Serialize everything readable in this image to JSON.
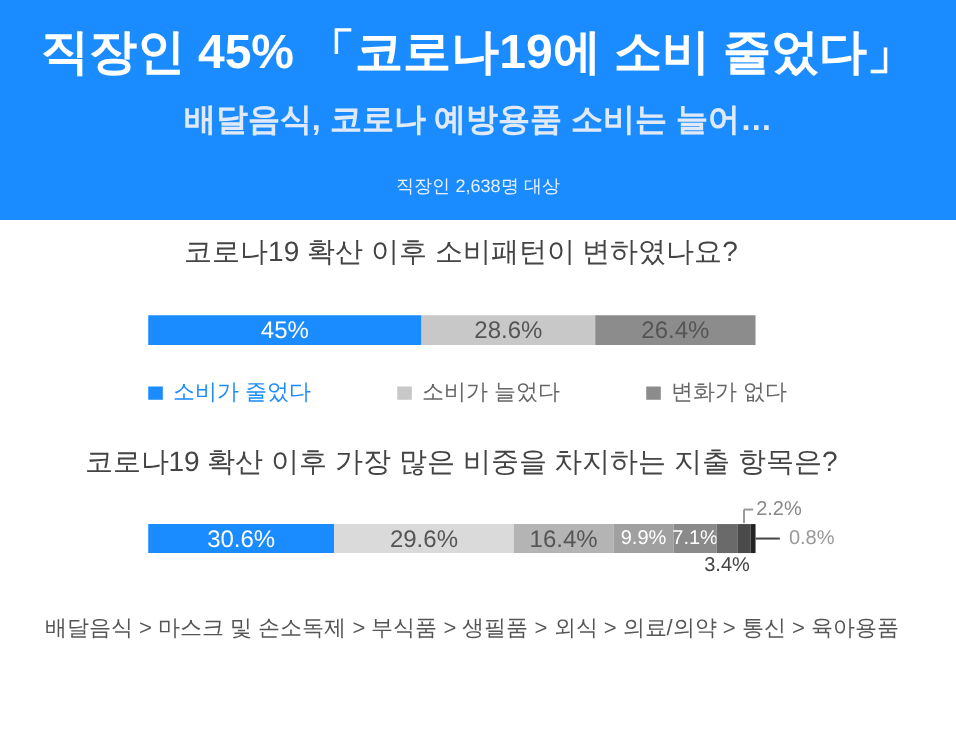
{
  "chart_data": [
    {
      "type": "other",
      "title": "직장인 45% 「코로나19에 소비 줄었다」",
      "subtitle": "배달음식, 코로나 예방용품 소비는 늘어…",
      "annotations": [
        "직장인 2,638명 대상"
      ],
      "color": "#1a8cff"
    },
    {
      "type": "bar",
      "orientation": "horizontal",
      "stacked": true,
      "title": "코로나19 확산 이후 소비패턴이 변하였나요?",
      "categories": [
        null
      ],
      "legend": "bottom",
      "data_labels": true,
      "series": [
        {
          "name": "소비가 줄었다",
          "color": "#1a8cff",
          "values": [
            45
          ],
          "value_labels": [
            "45%"
          ]
        },
        {
          "name": "소비가 늘었다",
          "color": "#c8c8c8",
          "values": [
            28.6
          ],
          "value_labels": [
            "28.6%"
          ]
        },
        {
          "name": "변화가 없다",
          "color": "#8c8c8c",
          "values": [
            26.4
          ],
          "value_labels": [
            "26.4%"
          ]
        }
      ]
    },
    {
      "type": "bar",
      "orientation": "horizontal",
      "stacked": true,
      "title": "코로나19 확산 이후 가장 많은 비중을 차지하는 지출 항목은?",
      "categories": [
        null
      ],
      "data_labels": true,
      "annotations": [
        "배달음식 > 마스크 및 손소독제 > 부식품 > 생필품 > 외식 > 의료/의약 > 통신 > 육아용품"
      ],
      "series": [
        {
          "color": "#1a8cff",
          "values": [
            30.6
          ],
          "value_labels": [
            "30.6%"
          ]
        },
        {
          "color": "#dadada",
          "values": [
            29.6
          ],
          "value_labels": [
            "29.6%"
          ]
        },
        {
          "color": "#b4b4b4",
          "values": [
            16.4
          ],
          "value_labels": [
            "16.4%"
          ]
        },
        {
          "color": "#a0a0a0",
          "values": [
            9.9
          ],
          "value_labels": [
            "9.9%"
          ]
        },
        {
          "color": "#8a8a8a",
          "values": [
            7.1
          ],
          "value_labels": [
            "7.1%"
          ]
        },
        {
          "color": "#6a6a6a",
          "values": [
            3.4
          ],
          "value_labels": [
            "3.4%"
          ]
        },
        {
          "color": "#4a4a4a",
          "values": [
            2.2
          ],
          "value_labels": [
            "2.2%"
          ]
        },
        {
          "color": "#222222",
          "values": [
            0.8
          ],
          "value_labels": [
            "0.8%"
          ]
        }
      ]
    }
  ]
}
